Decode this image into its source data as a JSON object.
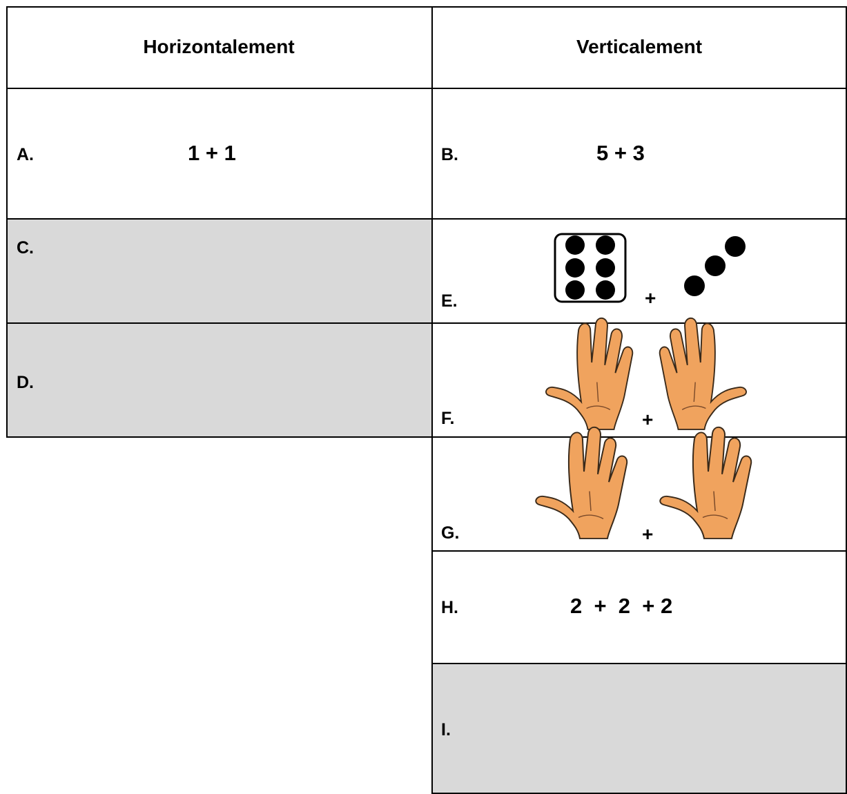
{
  "header": {
    "left": "Horizontalement",
    "right": "Verticalement"
  },
  "horizontal": [
    {
      "label": "A.",
      "expression": "1 + 1"
    },
    {
      "label": "C."
    },
    {
      "label": "D."
    }
  ],
  "vertical": [
    {
      "label": "B.",
      "expression": "5 + 3"
    },
    {
      "label": "E.",
      "operator": "+"
    },
    {
      "label": "F.",
      "operator": "+"
    },
    {
      "label": "G.",
      "operator": "+"
    },
    {
      "label": "H.",
      "expression": "2  +  2  + 2"
    },
    {
      "label": "I."
    }
  ]
}
